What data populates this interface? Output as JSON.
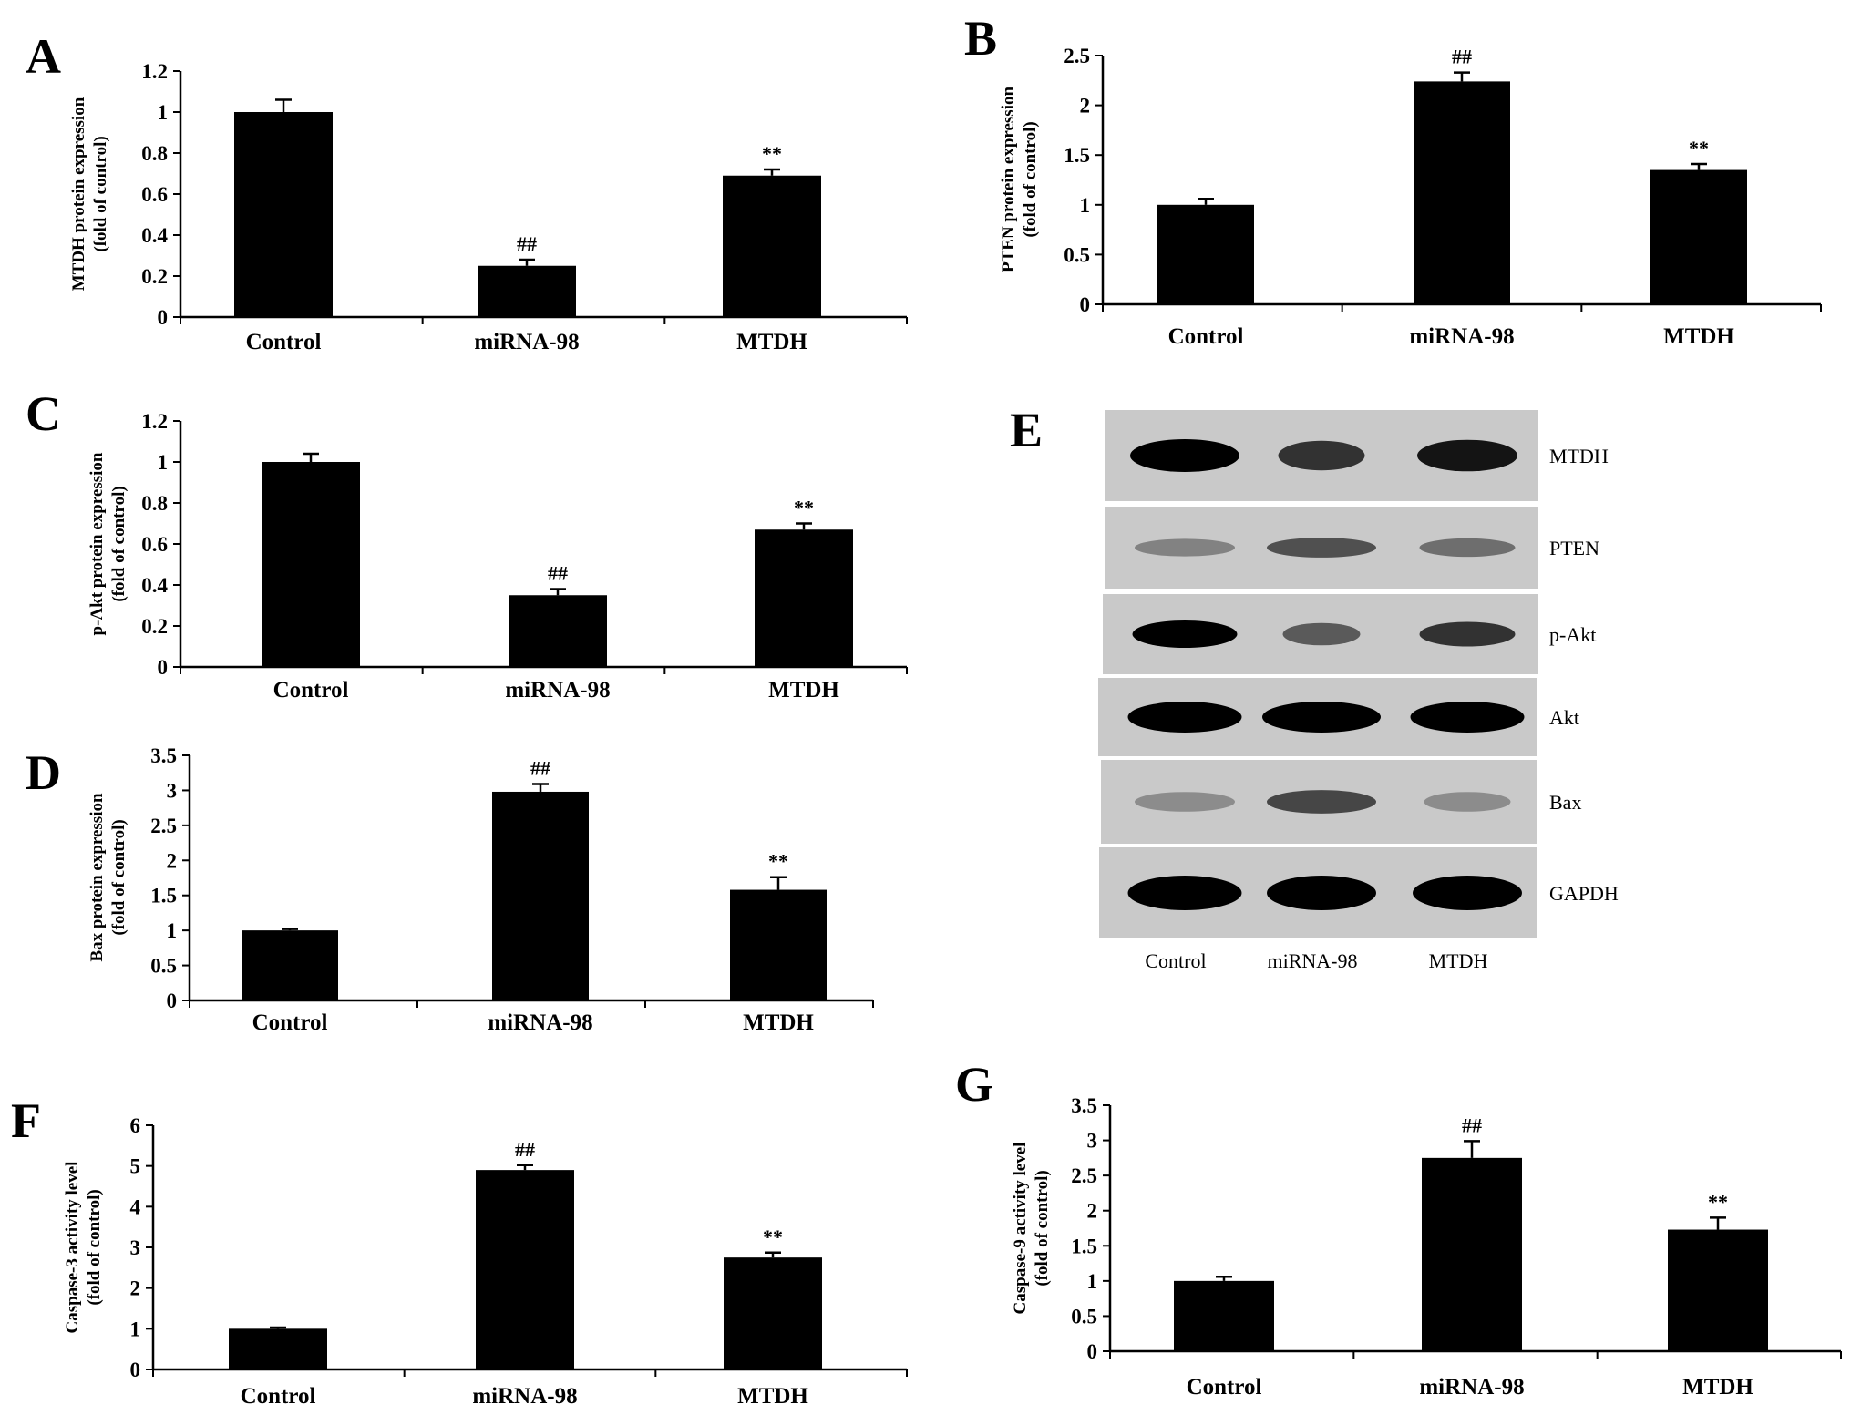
{
  "chart_data": [
    {
      "panel": "A",
      "type": "bar",
      "categories": [
        "Control",
        "miRNA-98",
        "MTDH"
      ],
      "values": [
        1.0,
        0.25,
        0.69
      ],
      "errors": [
        0.06,
        0.03,
        0.03
      ],
      "annotations": [
        "",
        "##",
        "**"
      ],
      "ylabel_line1": "MTDH protein expression",
      "ylabel_line2": "(fold of control)",
      "ylim": [
        0,
        1.2
      ],
      "yticks": [
        0,
        0.2,
        0.4,
        0.6,
        0.8,
        1,
        1.2
      ],
      "ytick_labels": [
        "0",
        "0.2",
        "0.4",
        "0.6",
        "0.8",
        "1",
        "1.2"
      ]
    },
    {
      "panel": "B",
      "type": "bar",
      "categories": [
        "Control",
        "miRNA-98",
        "MTDH"
      ],
      "values": [
        1.0,
        2.24,
        1.35
      ],
      "errors": [
        0.06,
        0.09,
        0.06
      ],
      "annotations": [
        "",
        "##",
        "**"
      ],
      "ylabel_line1": "PTEN protein expression",
      "ylabel_line2": "(fold of control)",
      "ylim": [
        0,
        2.5
      ],
      "yticks": [
        0,
        0.5,
        1,
        1.5,
        2,
        2.5
      ],
      "ytick_labels": [
        "0",
        "0.5",
        "1",
        "1.5",
        "2",
        "2.5"
      ]
    },
    {
      "panel": "C",
      "type": "bar",
      "categories": [
        "Control",
        "miRNA-98",
        "MTDH"
      ],
      "values": [
        1.0,
        0.35,
        0.67
      ],
      "errors": [
        0.04,
        0.03,
        0.03
      ],
      "annotations": [
        "",
        "##",
        "**"
      ],
      "ylabel_line1": "p-Akt protein expression",
      "ylabel_line2": "(fold of control)",
      "ylim": [
        0,
        1.2
      ],
      "yticks": [
        0,
        0.2,
        0.4,
        0.6,
        0.8,
        1,
        1.2
      ],
      "ytick_labels": [
        "0",
        "0.2",
        "0.4",
        "0.6",
        "0.8",
        "1",
        "1.2"
      ]
    },
    {
      "panel": "D",
      "type": "bar",
      "categories": [
        "Control",
        "miRNA-98",
        "MTDH"
      ],
      "values": [
        1.0,
        2.98,
        1.58
      ],
      "errors": [
        0.02,
        0.11,
        0.18
      ],
      "annotations": [
        "",
        "##",
        "**"
      ],
      "ylabel_line1": "Bax protein expression",
      "ylabel_line2": "(fold of control)",
      "ylim": [
        0,
        3.5
      ],
      "yticks": [
        0,
        0.5,
        1,
        1.5,
        2,
        2.5,
        3,
        3.5
      ],
      "ytick_labels": [
        "0",
        "0.5",
        "1",
        "1.5",
        "2",
        "2.5",
        "3",
        "3.5"
      ]
    },
    {
      "panel": "F",
      "type": "bar",
      "categories": [
        "Control",
        "miRNA-98",
        "MTDH"
      ],
      "values": [
        1.0,
        4.9,
        2.75
      ],
      "errors": [
        0.03,
        0.12,
        0.12
      ],
      "annotations": [
        "",
        "##",
        "**"
      ],
      "ylabel_line1": "Caspase-3 activity level",
      "ylabel_line2": "(fold of control)",
      "ylim": [
        0,
        6
      ],
      "yticks": [
        0,
        1,
        2,
        3,
        4,
        5,
        6
      ],
      "ytick_labels": [
        "0",
        "1",
        "2",
        "3",
        "4",
        "5",
        "6"
      ]
    },
    {
      "panel": "G",
      "type": "bar",
      "categories": [
        "Control",
        "miRNA-98",
        "MTDH"
      ],
      "values": [
        1.0,
        2.75,
        1.73
      ],
      "errors": [
        0.06,
        0.24,
        0.17
      ],
      "annotations": [
        "",
        "##",
        "**"
      ],
      "ylabel_line1": "Caspase-9 activity level",
      "ylabel_line2": "(fold of control)",
      "ylim": [
        0,
        3.5
      ],
      "yticks": [
        0,
        0.5,
        1,
        1.5,
        2,
        2.5,
        3,
        3.5
      ],
      "ytick_labels": [
        "0",
        "0.5",
        "1",
        "1.5",
        "2",
        "2.5",
        "3",
        "3.5"
      ]
    }
  ],
  "blot": {
    "panel": "E",
    "rows": [
      "MTDH",
      "PTEN",
      "p-Akt",
      "Akt",
      "Bax",
      "GAPDH"
    ],
    "lanes": [
      "Control",
      "miRNA-98",
      "MTDH"
    ],
    "band_intensity": [
      [
        1.0,
        0.75,
        0.9
      ],
      [
        0.35,
        0.6,
        0.45
      ],
      [
        1.0,
        0.55,
        0.75
      ],
      [
        1.0,
        1.0,
        1.0
      ],
      [
        0.3,
        0.65,
        0.3
      ],
      [
        1.0,
        1.0,
        1.0
      ]
    ]
  }
}
